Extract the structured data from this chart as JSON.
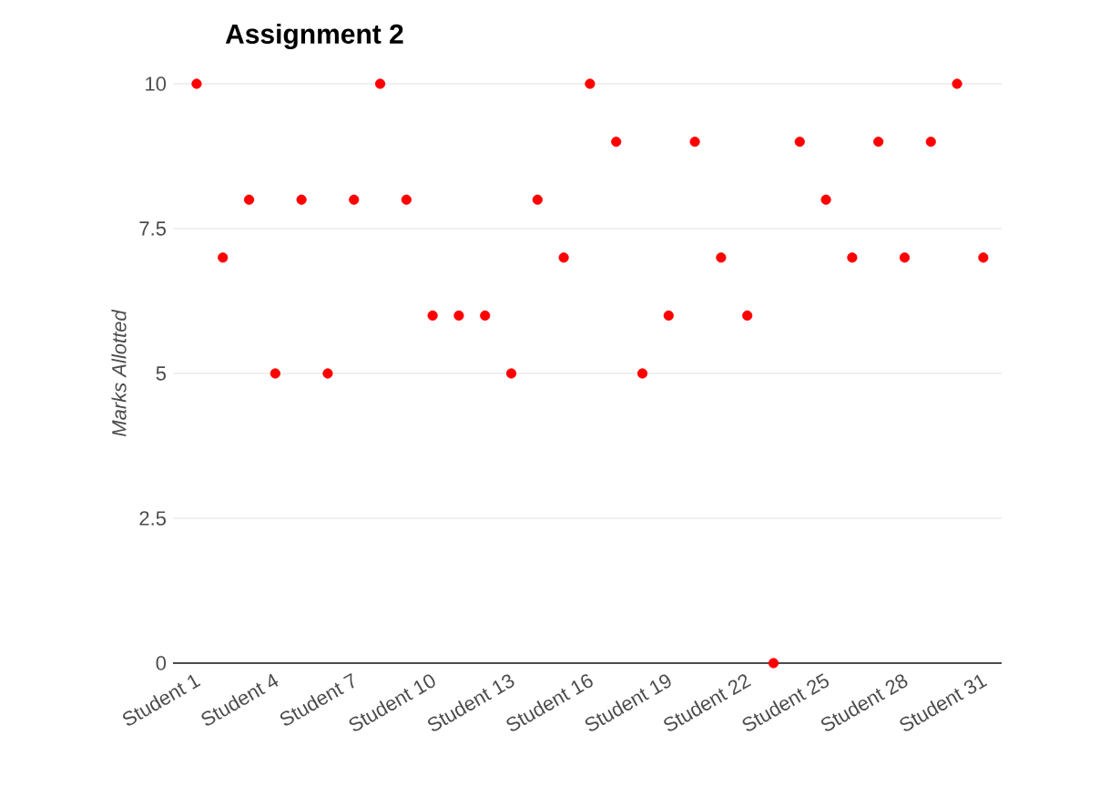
{
  "chart_data": {
    "type": "scatter",
    "title": "Assignment 2",
    "ylabel": "Marks Allotted",
    "categories": [
      "Student 1",
      null,
      null,
      "Student 4",
      null,
      null,
      "Student 7",
      null,
      null,
      "Student 10",
      null,
      null,
      "Student 13",
      null,
      null,
      "Student 16",
      null,
      null,
      "Student 19",
      null,
      null,
      "Student 22",
      null,
      null,
      "Student 25",
      null,
      null,
      "Student 28",
      null,
      null,
      "Student 31"
    ],
    "series": [
      {
        "color": "#ff0000",
        "values": [
          10,
          7,
          8,
          5,
          8,
          5,
          8,
          10,
          8,
          6,
          6,
          6,
          5,
          8,
          7,
          10,
          9,
          5,
          6,
          9,
          7,
          6,
          0,
          9,
          8,
          7,
          9,
          7,
          9,
          10,
          7
        ]
      }
    ],
    "ylim": [
      0,
      10
    ],
    "yticks": [
      0,
      2.5,
      5,
      7.5,
      10
    ],
    "grid": "y"
  }
}
